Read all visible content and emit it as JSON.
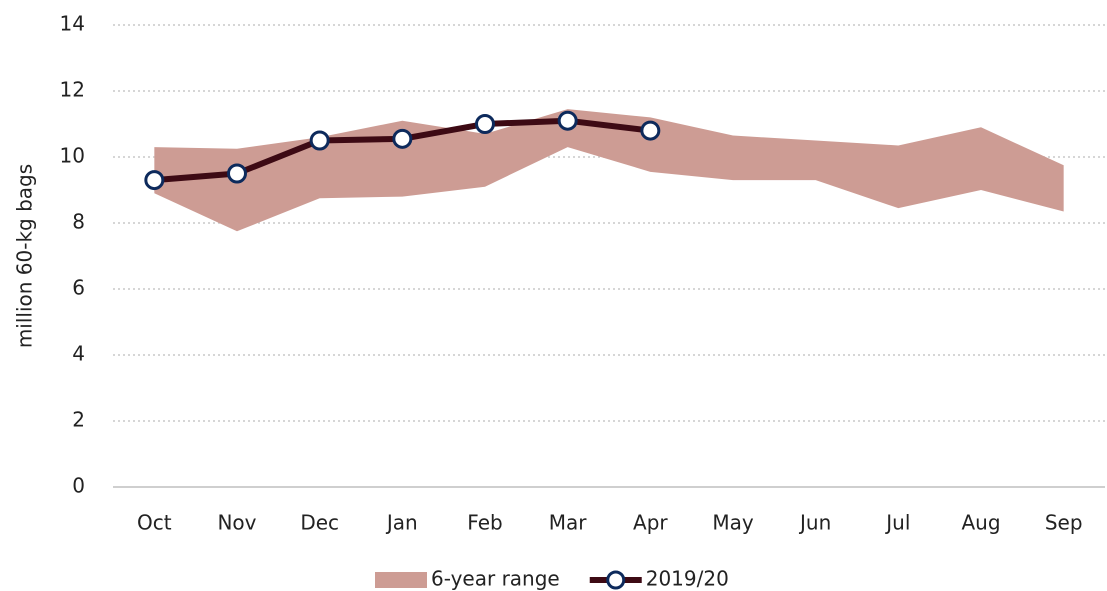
{
  "chart_data": {
    "type": "line",
    "y_axis_label": "million 60-kg bags",
    "categories": [
      "Oct",
      "Nov",
      "Dec",
      "Jan",
      "Feb",
      "Mar",
      "Apr",
      "May",
      "Jun",
      "Jul",
      "Aug",
      "Sep"
    ],
    "series": [
      {
        "name": "6-year range",
        "color": "#cd9c94",
        "type": "range",
        "low": [
          8.9,
          7.75,
          8.75,
          8.8,
          9.1,
          10.3,
          9.55,
          9.3,
          9.3,
          8.45,
          9.0,
          8.35
        ],
        "high": [
          10.3,
          10.25,
          10.6,
          11.1,
          10.7,
          11.45,
          11.2,
          10.65,
          10.5,
          10.35,
          10.9,
          9.75
        ]
      },
      {
        "name": "2019/20",
        "color": "#3d0a14",
        "marker_edge": "#0d2a5c",
        "values": [
          9.3,
          9.5,
          10.5,
          10.55,
          11.0,
          11.1,
          10.8,
          null,
          null,
          null,
          null,
          null
        ]
      }
    ],
    "ylim": [
      0,
      14
    ],
    "yticks": [
      0,
      2,
      4,
      6,
      8,
      10,
      12,
      14
    ],
    "grid": true,
    "legend": "bottom"
  }
}
